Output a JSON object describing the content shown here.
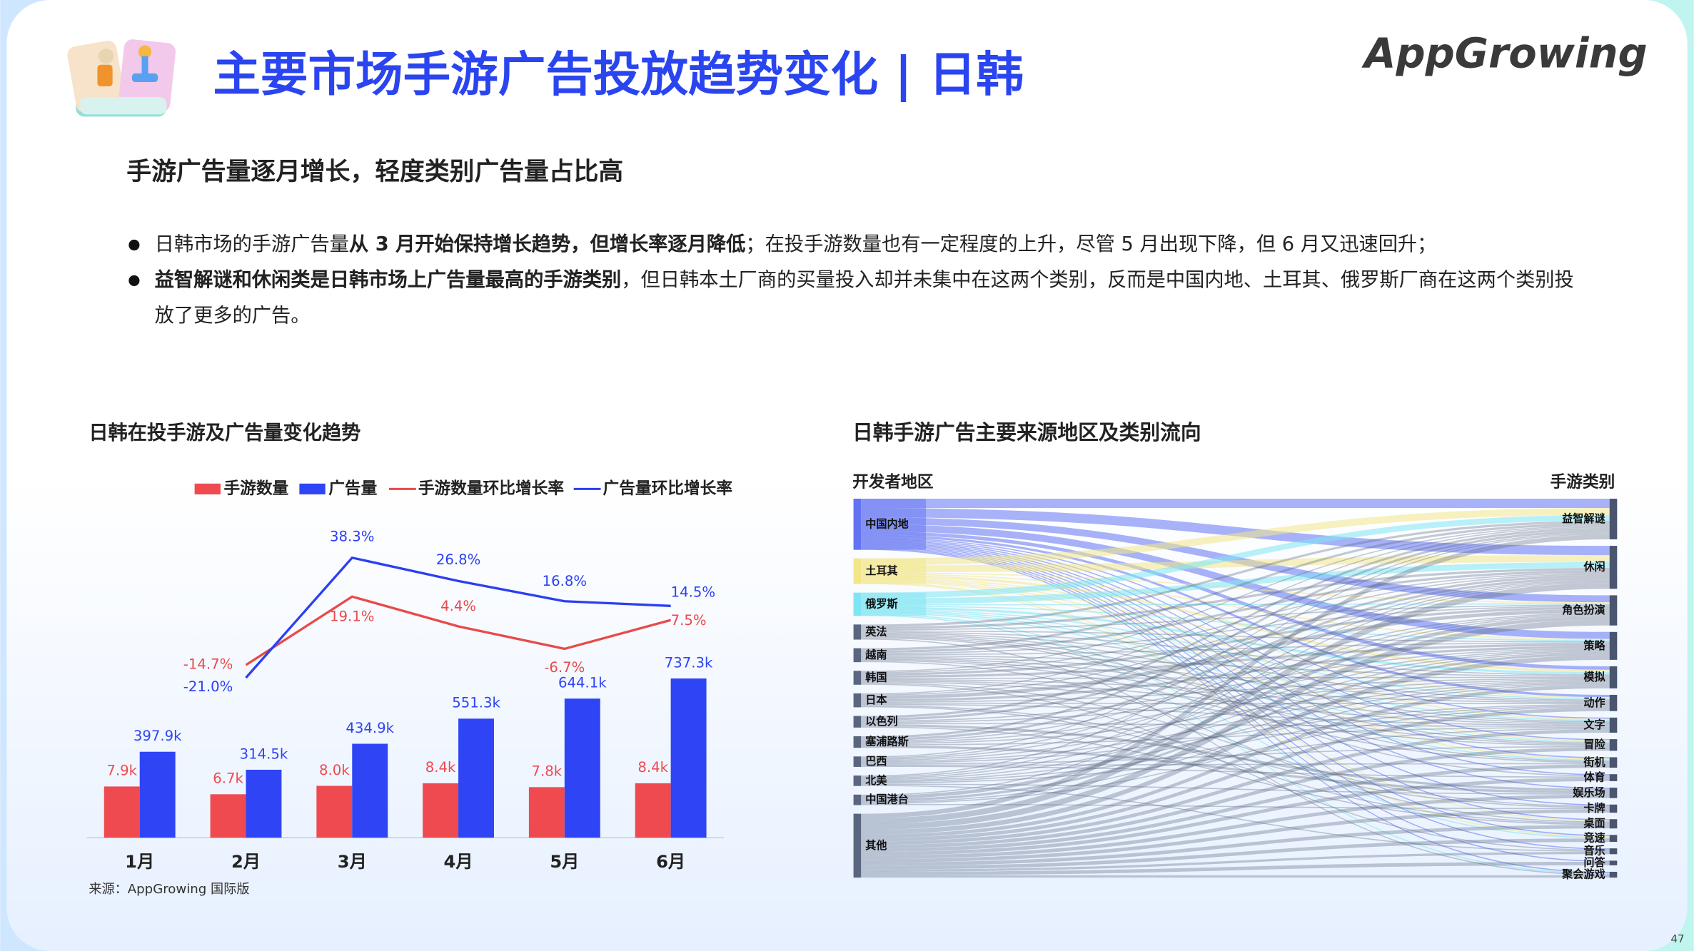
{
  "header": {
    "title": "主要市场手游广告投放趋势变化 | 日韩",
    "logo": "AppGrowing"
  },
  "subtitle": "手游广告量逐月增长，轻度类别广告量占比高",
  "bullets": [
    [
      {
        "text": "日韩市场的手游广告量",
        "bold": false
      },
      {
        "text": "从 3 月开始保持增长趋势，但增长率逐月降低",
        "bold": true
      },
      {
        "text": "；在投手游数量也有一定程度的上升，尽管 5 月出现下降，但 6 月又迅速回升；",
        "bold": false
      }
    ],
    [
      {
        "text": "益智解谜和休闲类是日韩市场上广告量最高的手游类别",
        "bold": true
      },
      {
        "text": "，但日韩本土厂商的买量投入却并未集中在这两个类别，反而是中国内地、土耳其、俄罗斯厂商在这两个类别投放了更多的广告。",
        "bold": false
      }
    ]
  ],
  "chart_data": [
    {
      "type": "bar",
      "title": "日韩在投手游及广告量变化趋势",
      "categories": [
        "1月",
        "2月",
        "3月",
        "4月",
        "5月",
        "6月"
      ],
      "ylim": [
        0,
        1500000
      ],
      "y2lim": [
        -100,
        60
      ],
      "y3lim": [
        0,
        50000
      ],
      "series": [
        {
          "name": "手游数量",
          "kind": "bar",
          "axis": "y3",
          "color": "#ef4a4f",
          "values": [
            7900,
            6700,
            8000,
            8400,
            7800,
            8400
          ],
          "value_labels": [
            "7.9k",
            "6.7k",
            "8.0k",
            "8.4k",
            "7.8k",
            "8.4k"
          ]
        },
        {
          "name": "广告量",
          "kind": "bar",
          "axis": "y",
          "color": "#2f45f5",
          "values": [
            397900,
            314500,
            434900,
            551300,
            644100,
            737300
          ],
          "value_labels": [
            "397.9k",
            "314.5k",
            "434.9k",
            "551.3k",
            "644.1k",
            "737.3k"
          ]
        },
        {
          "name": "手游数量环比增长率",
          "kind": "line",
          "axis": "y2",
          "color": "#e84a4a",
          "values": [
            null,
            -14.7,
            19.1,
            4.4,
            -6.7,
            7.5
          ],
          "value_labels": [
            null,
            "-14.7%",
            "19.1%",
            "4.4%",
            "-6.7%",
            "7.5%"
          ]
        },
        {
          "name": "广告量环比增长率",
          "kind": "line",
          "axis": "y2",
          "color": "#2b3ff0",
          "values": [
            null,
            -21.0,
            38.3,
            26.8,
            16.8,
            14.5
          ],
          "value_labels": [
            null,
            "-21.0%",
            "38.3%",
            "26.8%",
            "16.8%",
            "14.5%"
          ]
        }
      ]
    },
    {
      "type": "sankey",
      "title": "日韩手游广告主要来源地区及类别流向",
      "left_title": "开发者地区",
      "right_title": "手游类别",
      "sources": [
        {
          "name": "中国内地",
          "color": "#6172f2"
        },
        {
          "name": "土耳其",
          "color": "#f2e68a"
        },
        {
          "name": "俄罗斯",
          "color": "#7ee6f2"
        },
        {
          "name": "英法",
          "color": "#5a6680"
        },
        {
          "name": "越南",
          "color": "#5a6680"
        },
        {
          "name": "韩国",
          "color": "#5a6680"
        },
        {
          "name": "日本",
          "color": "#5a6680"
        },
        {
          "name": "以色列",
          "color": "#5a6680"
        },
        {
          "name": "塞浦路斯",
          "color": "#5a6680"
        },
        {
          "name": "巴西",
          "color": "#5a6680"
        },
        {
          "name": "北美",
          "color": "#5a6680"
        },
        {
          "name": "中国港台",
          "color": "#5a6680"
        },
        {
          "name": "其他",
          "color": "#5a6680"
        }
      ],
      "targets": [
        "益智解谜",
        "休闲",
        "角色扮演",
        "策略",
        "模拟",
        "动作",
        "文字",
        "冒险",
        "街机",
        "体育",
        "娱乐场",
        "卡牌",
        "桌面",
        "竞速",
        "音乐",
        "问答",
        "聚会游戏"
      ],
      "target_color": "#4a5670",
      "flows": [
        [
          8,
          8,
          6,
          6,
          3,
          2,
          1,
          1,
          1,
          1,
          1,
          1,
          1,
          1,
          1,
          1,
          1
        ],
        [
          6,
          6,
          1,
          1,
          2,
          1,
          1,
          1,
          1,
          0,
          0,
          0,
          1,
          1,
          0,
          0,
          0
        ],
        [
          5,
          5,
          1,
          1,
          2,
          1,
          1,
          1,
          1,
          0,
          0,
          0,
          0,
          1,
          0,
          0,
          1
        ],
        [
          2,
          2,
          1,
          1,
          1,
          1,
          1,
          1,
          1,
          1,
          0,
          0,
          0,
          0,
          0,
          0,
          1
        ],
        [
          2,
          2,
          1,
          1,
          1,
          1,
          1,
          1,
          1,
          0,
          0,
          0,
          1,
          0,
          0,
          0,
          0
        ],
        [
          1,
          1,
          2,
          2,
          1,
          1,
          1,
          1,
          0,
          0,
          0,
          1,
          0,
          0,
          1,
          0,
          0
        ],
        [
          1,
          1,
          3,
          2,
          1,
          1,
          1,
          0,
          0,
          0,
          0,
          1,
          1,
          0,
          0,
          0,
          0
        ],
        [
          2,
          2,
          0,
          1,
          1,
          0,
          1,
          0,
          0,
          0,
          2,
          0,
          1,
          0,
          0,
          0,
          0
        ],
        [
          2,
          2,
          1,
          1,
          1,
          0,
          1,
          0,
          0,
          0,
          2,
          0,
          0,
          0,
          0,
          0,
          0
        ],
        [
          1,
          1,
          1,
          1,
          1,
          1,
          0,
          1,
          1,
          1,
          0,
          0,
          0,
          0,
          0,
          0,
          0
        ],
        [
          1,
          1,
          1,
          1,
          1,
          1,
          1,
          0,
          0,
          0,
          1,
          0,
          0,
          0,
          1,
          0,
          0
        ],
        [
          0,
          1,
          3,
          2,
          1,
          1,
          0,
          0,
          0,
          0,
          0,
          1,
          0,
          0,
          0,
          0,
          0
        ],
        [
          4,
          5,
          5,
          4,
          3,
          3,
          3,
          3,
          3,
          3,
          3,
          3,
          3,
          3,
          2,
          3,
          2
        ]
      ]
    }
  ],
  "source": "来源：AppGrowing 国际版",
  "page_number": "47"
}
